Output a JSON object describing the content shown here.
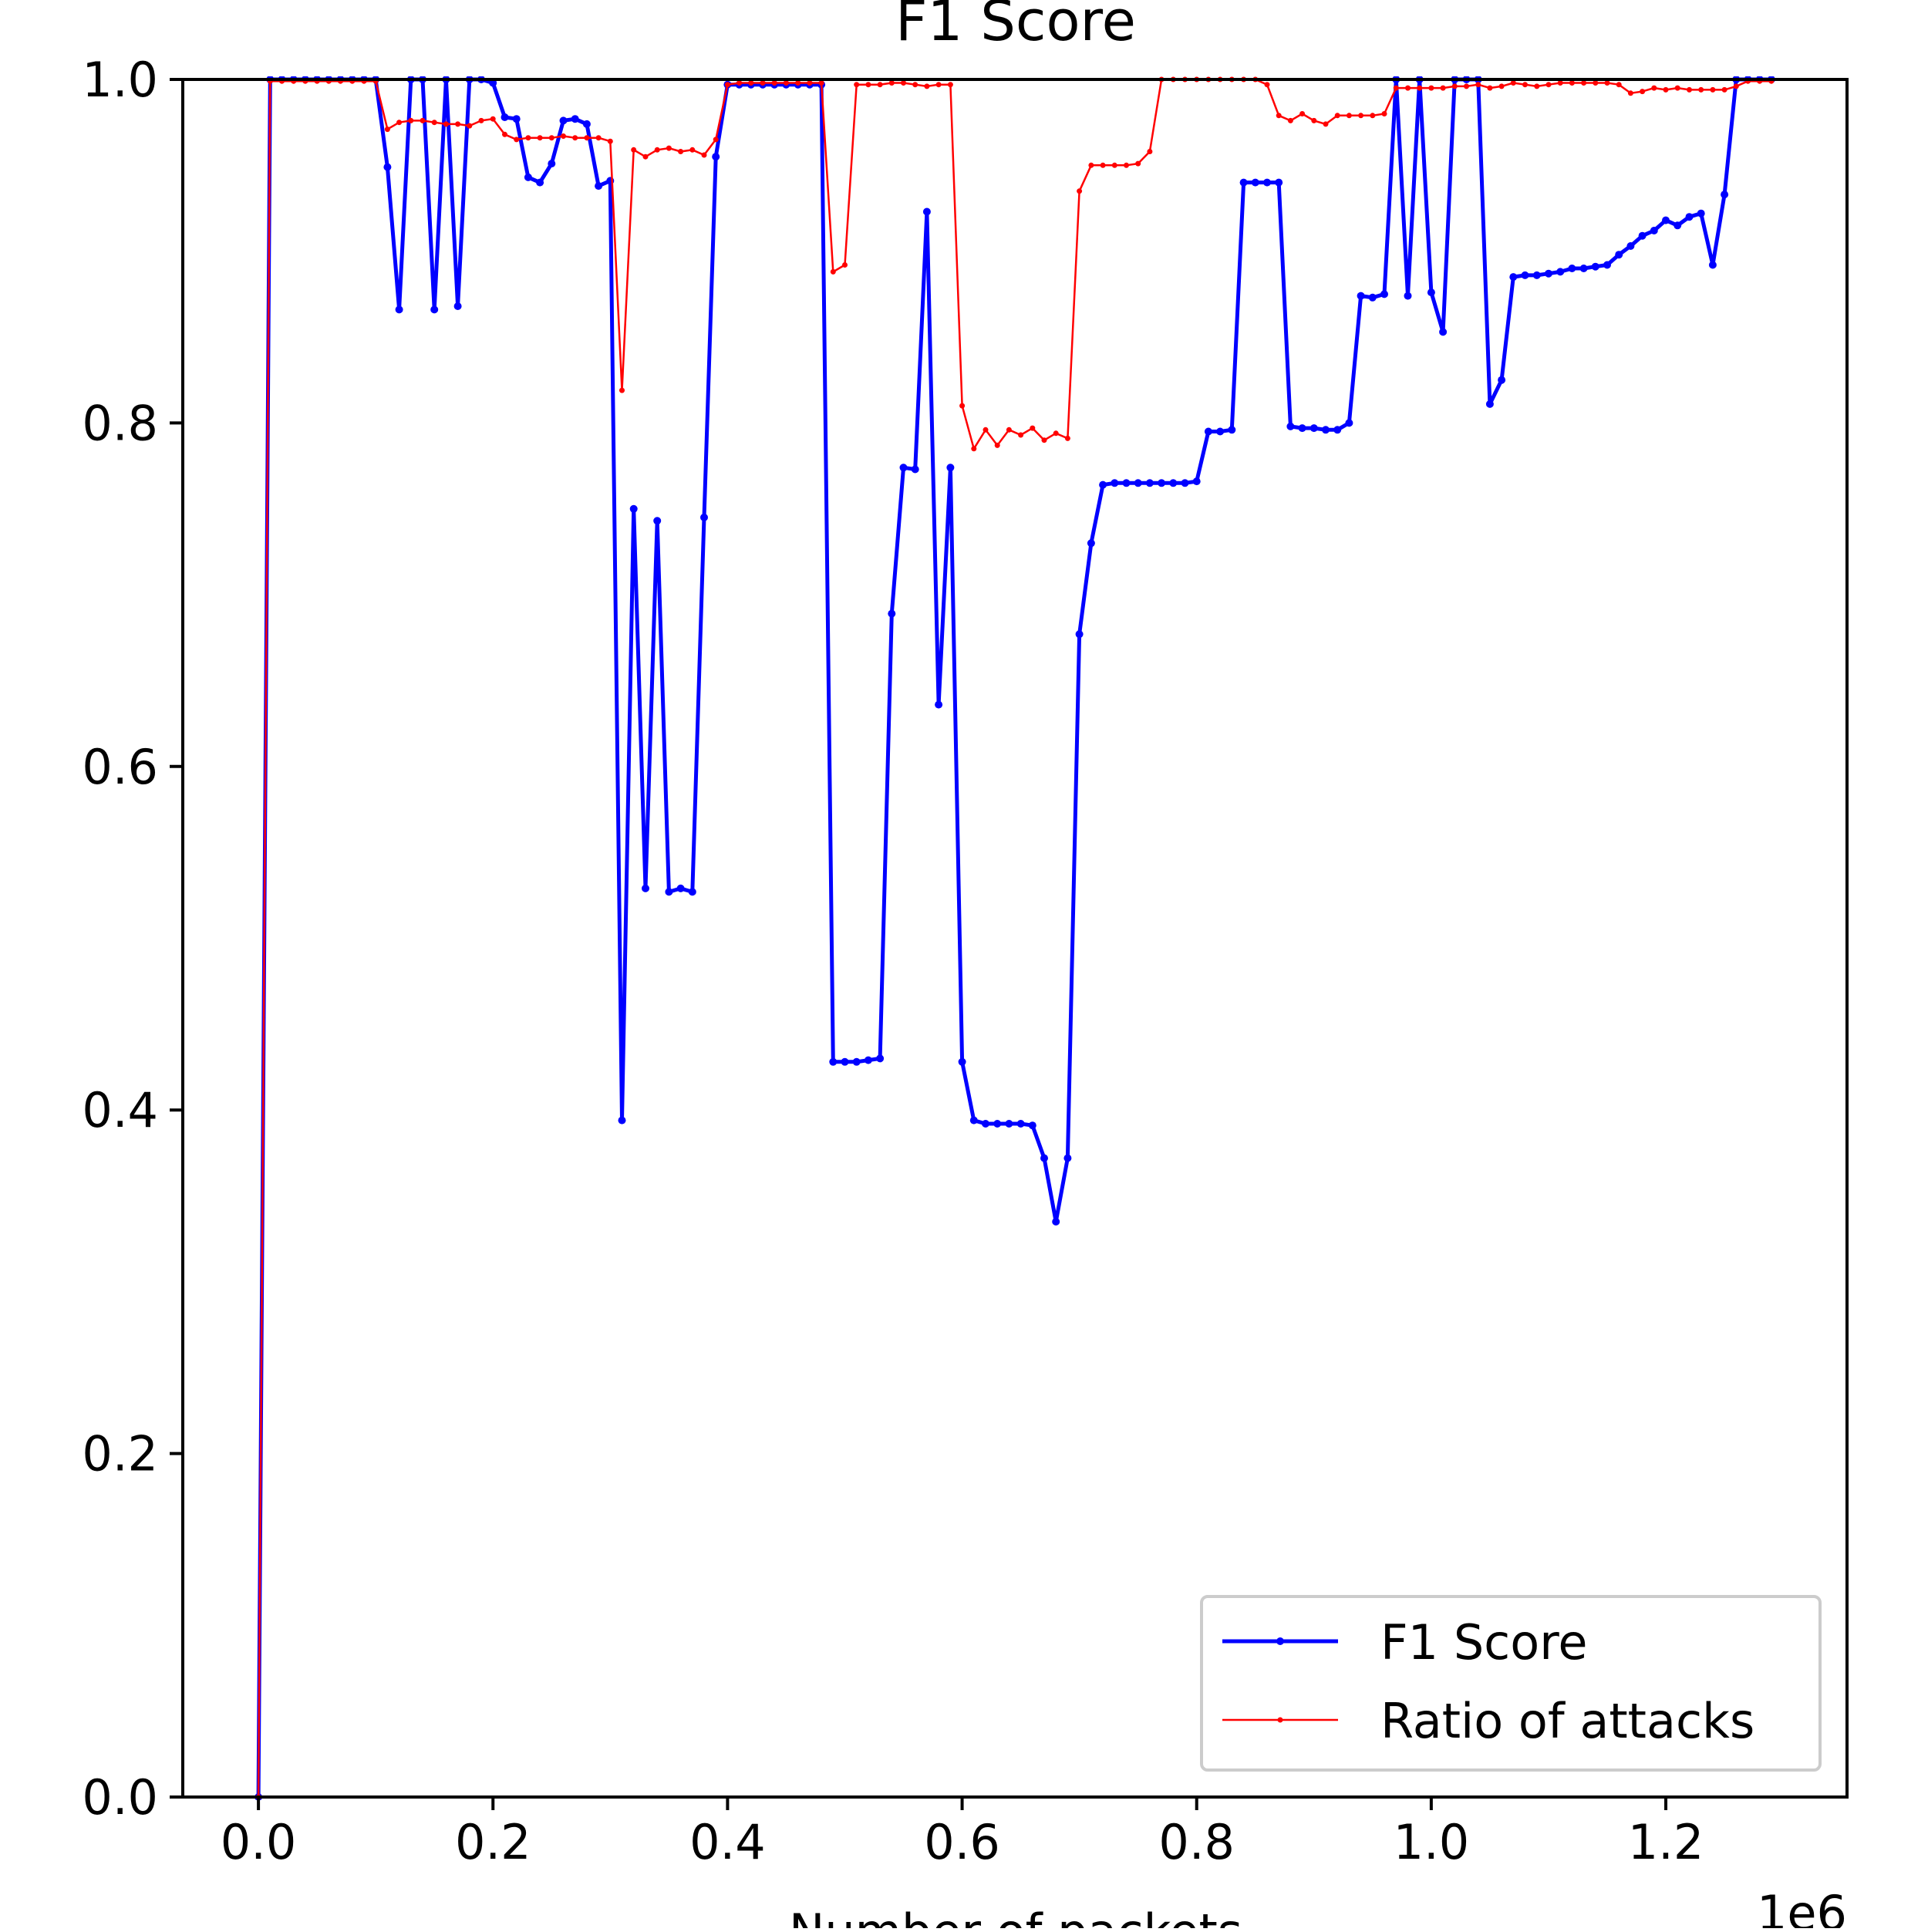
{
  "chart_data": {
    "type": "line",
    "title": "F1 Score",
    "xlabel": "Number of packets",
    "ylabel": "",
    "x_offset_label": "1e6",
    "xlim": [
      -0.0645,
      1.3545
    ],
    "ylim": [
      0,
      1
    ],
    "x_ticks": [
      0.0,
      0.2,
      0.4,
      0.6,
      0.8,
      1.0,
      1.2
    ],
    "x_tick_labels": [
      "0.0",
      "0.2",
      "0.4",
      "0.6",
      "0.8",
      "1.0",
      "1.2"
    ],
    "y_ticks": [
      0.0,
      0.2,
      0.4,
      0.6,
      0.8,
      1.0
    ],
    "y_tick_labels": [
      "0.0",
      "0.2",
      "0.4",
      "0.6",
      "0.8",
      "1.0"
    ],
    "grid": false,
    "legend_position": "lower-right",
    "x": [
      0.0,
      0.01,
      0.02,
      0.03,
      0.04,
      0.05,
      0.06,
      0.07,
      0.08,
      0.09,
      0.1,
      0.11,
      0.12,
      0.13,
      0.14,
      0.15,
      0.16,
      0.17,
      0.18,
      0.19,
      0.2,
      0.21,
      0.22,
      0.23,
      0.24,
      0.25,
      0.26,
      0.27,
      0.28,
      0.29,
      0.3,
      0.31,
      0.32,
      0.33,
      0.34,
      0.35,
      0.36,
      0.37,
      0.38,
      0.39,
      0.4,
      0.41,
      0.42,
      0.43,
      0.44,
      0.45,
      0.46,
      0.47,
      0.48,
      0.49,
      0.5,
      0.51,
      0.52,
      0.53,
      0.54,
      0.55,
      0.56,
      0.57,
      0.58,
      0.59,
      0.6,
      0.61,
      0.62,
      0.63,
      0.64,
      0.65,
      0.66,
      0.67,
      0.68,
      0.69,
      0.7,
      0.71,
      0.72,
      0.73,
      0.74,
      0.75,
      0.76,
      0.77,
      0.78,
      0.79,
      0.8,
      0.81,
      0.82,
      0.83,
      0.84,
      0.85,
      0.86,
      0.87,
      0.88,
      0.89,
      0.9,
      0.91,
      0.92,
      0.93,
      0.94,
      0.95,
      0.96,
      0.97,
      0.98,
      0.99,
      1.0,
      1.01,
      1.02,
      1.03,
      1.04,
      1.05,
      1.06,
      1.07,
      1.08,
      1.09,
      1.1,
      1.11,
      1.12,
      1.13,
      1.14,
      1.15,
      1.16,
      1.17,
      1.18,
      1.19,
      1.2,
      1.21,
      1.22,
      1.23,
      1.24,
      1.25,
      1.26,
      1.27,
      1.28,
      1.29
    ],
    "series": [
      {
        "name": "F1 Score",
        "color": "#0000ff",
        "values": [
          0.0,
          1.0,
          1.0,
          1.0,
          1.0,
          1.0,
          1.0,
          1.0,
          1.0,
          1.0,
          1.0,
          0.949,
          0.866,
          1.0,
          1.0,
          0.866,
          1.0,
          0.868,
          1.0,
          1.0,
          0.998,
          0.978,
          0.977,
          0.943,
          0.94,
          0.951,
          0.976,
          0.977,
          0.974,
          0.938,
          0.941,
          0.394,
          0.75,
          0.529,
          0.743,
          0.527,
          0.529,
          0.527,
          0.745,
          0.955,
          0.997,
          0.997,
          0.997,
          0.997,
          0.997,
          0.997,
          0.997,
          0.997,
          0.997,
          0.428,
          0.428,
          0.428,
          0.429,
          0.43,
          0.689,
          0.774,
          0.773,
          0.923,
          0.636,
          0.774,
          0.428,
          0.394,
          0.392,
          0.392,
          0.392,
          0.392,
          0.391,
          0.372,
          0.335,
          0.372,
          0.677,
          0.73,
          0.764,
          0.765,
          0.765,
          0.765,
          0.765,
          0.765,
          0.765,
          0.765,
          0.766,
          0.795,
          0.795,
          0.796,
          0.94,
          0.94,
          0.94,
          0.94,
          0.798,
          0.797,
          0.797,
          0.796,
          0.796,
          0.8,
          0.874,
          0.873,
          0.875,
          1.0,
          0.874,
          1.0,
          0.876,
          0.853,
          1.0,
          1.0,
          1.0,
          0.811,
          0.825,
          0.885,
          0.886,
          0.886,
          0.887,
          0.888,
          0.89,
          0.89,
          0.891,
          0.892,
          0.898,
          0.903,
          0.909,
          0.912,
          0.918,
          0.915,
          0.92,
          0.922,
          0.892,
          0.933,
          1.0,
          1.0,
          1.0,
          1.0
        ]
      },
      {
        "name": "Ratio of attacks",
        "color": "#ff0000",
        "values": [
          0.0,
          0.999,
          0.999,
          0.999,
          0.999,
          0.999,
          0.999,
          0.999,
          0.999,
          0.999,
          0.999,
          0.971,
          0.975,
          0.976,
          0.976,
          0.975,
          0.974,
          0.974,
          0.973,
          0.976,
          0.977,
          0.968,
          0.965,
          0.966,
          0.966,
          0.966,
          0.967,
          0.966,
          0.966,
          0.966,
          0.964,
          0.819,
          0.959,
          0.955,
          0.959,
          0.96,
          0.958,
          0.959,
          0.956,
          0.965,
          0.997,
          0.998,
          0.998,
          0.998,
          0.998,
          0.998,
          0.998,
          0.998,
          0.998,
          0.888,
          0.892,
          0.997,
          0.997,
          0.997,
          0.998,
          0.998,
          0.997,
          0.996,
          0.997,
          0.997,
          0.81,
          0.785,
          0.796,
          0.787,
          0.796,
          0.793,
          0.797,
          0.79,
          0.794,
          0.791,
          0.935,
          0.95,
          0.95,
          0.95,
          0.95,
          0.951,
          0.958,
          1.0,
          1.0,
          1.0,
          1.0,
          1.0,
          1.0,
          1.0,
          1.0,
          1.0,
          0.997,
          0.979,
          0.976,
          0.98,
          0.976,
          0.974,
          0.979,
          0.979,
          0.979,
          0.979,
          0.98,
          0.995,
          0.995,
          0.995,
          0.995,
          0.995,
          0.996,
          0.996,
          0.997,
          0.995,
          0.996,
          0.998,
          0.997,
          0.996,
          0.997,
          0.998,
          0.998,
          0.998,
          0.998,
          0.998,
          0.997,
          0.992,
          0.993,
          0.995,
          0.994,
          0.995,
          0.994,
          0.994,
          0.994,
          0.994,
          0.996,
          0.999,
          0.999,
          0.999
        ]
      }
    ]
  }
}
